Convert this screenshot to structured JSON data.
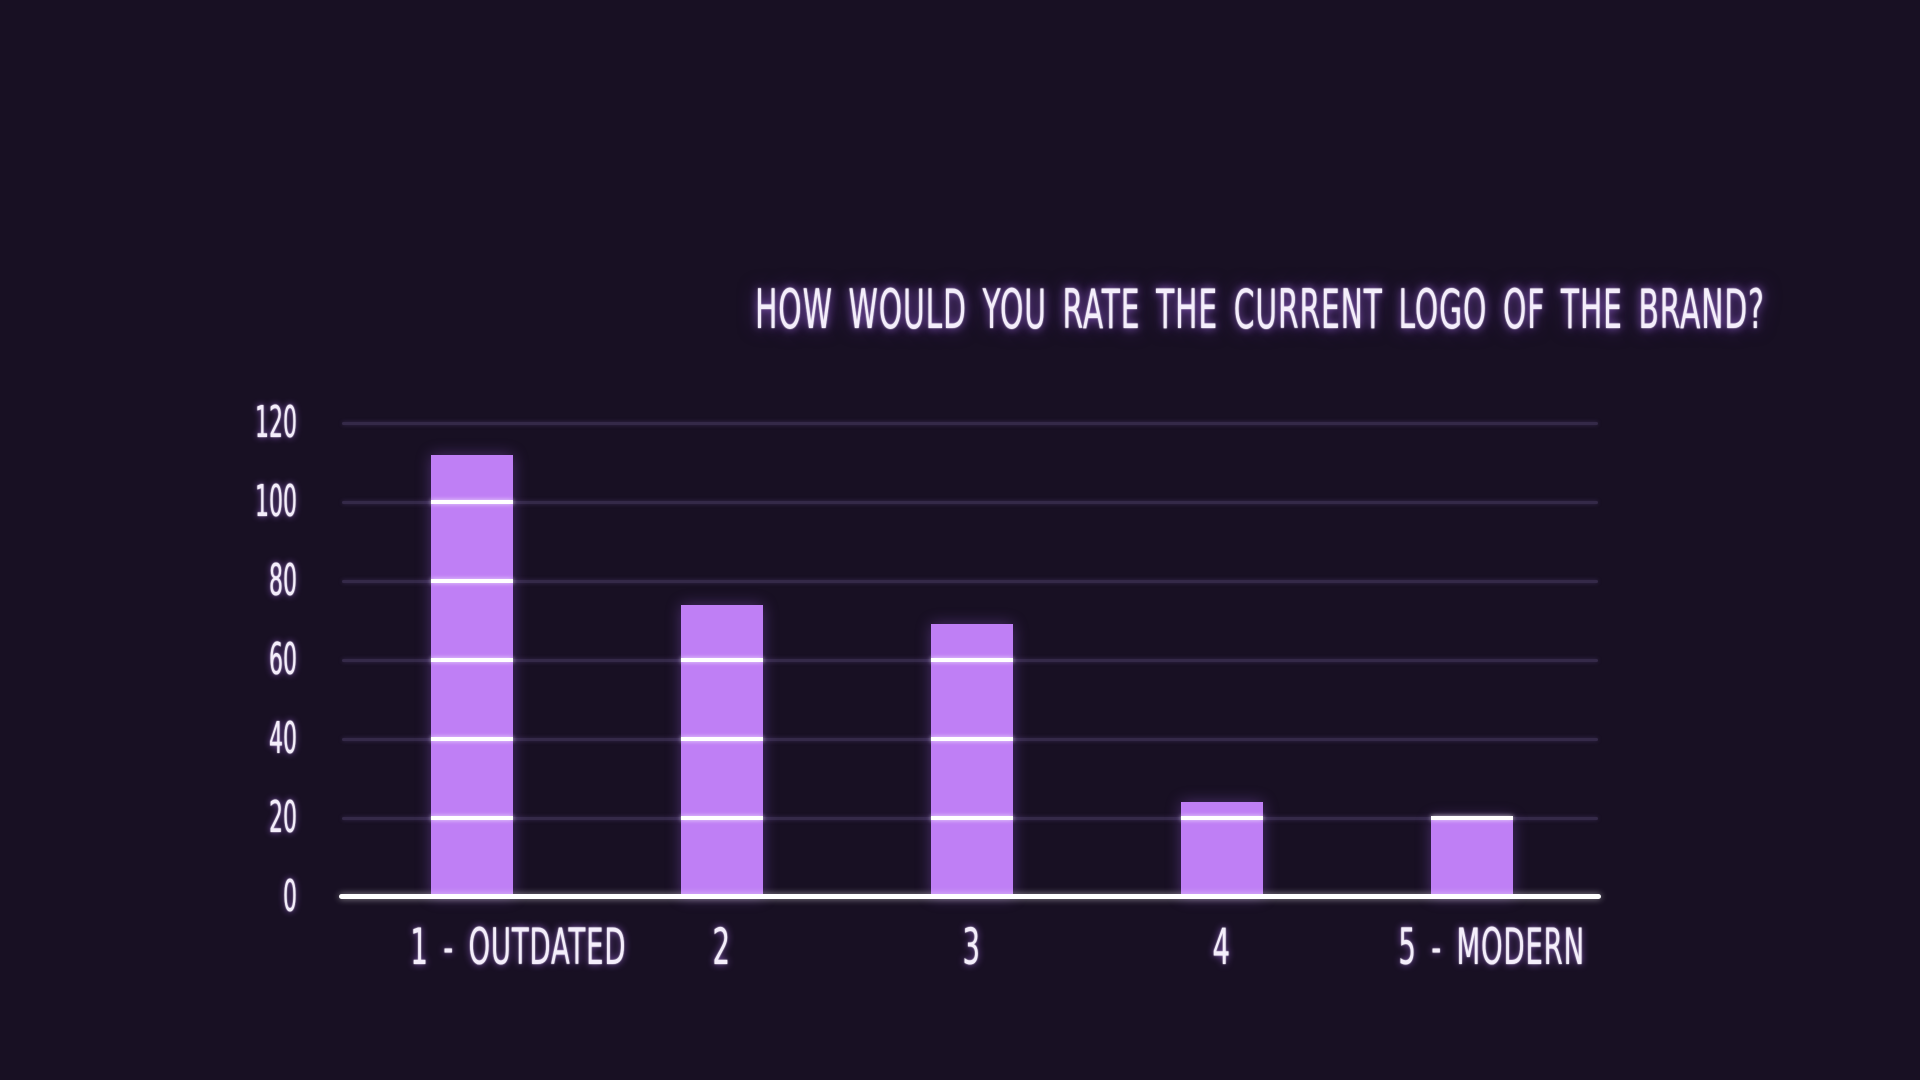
{
  "page": {
    "background_color": "#181023",
    "text_color": "#f4eefb"
  },
  "colors": {
    "bar": "#bf7ff5",
    "gridline": "#342948",
    "gridline_over_bar": "#ffffff",
    "axis_line": "#ffffff",
    "label_glow": "#a76ee8"
  },
  "chart_data": {
    "type": "bar",
    "title": "HOW WOULD YOU RATE THE CURRENT LOGO OF THE BRAND?",
    "categories": [
      "1 - OUTDATED",
      "2",
      "3",
      "4",
      "5 - MODERN"
    ],
    "values": [
      112,
      74,
      69,
      24,
      20
    ],
    "xlabel": "",
    "ylabel": "",
    "ylim": [
      0,
      120
    ],
    "yticks": [
      0,
      20,
      40,
      60,
      80,
      100,
      120
    ],
    "grid": true,
    "gridlines_drawn_over_bars": true,
    "legend": false
  }
}
